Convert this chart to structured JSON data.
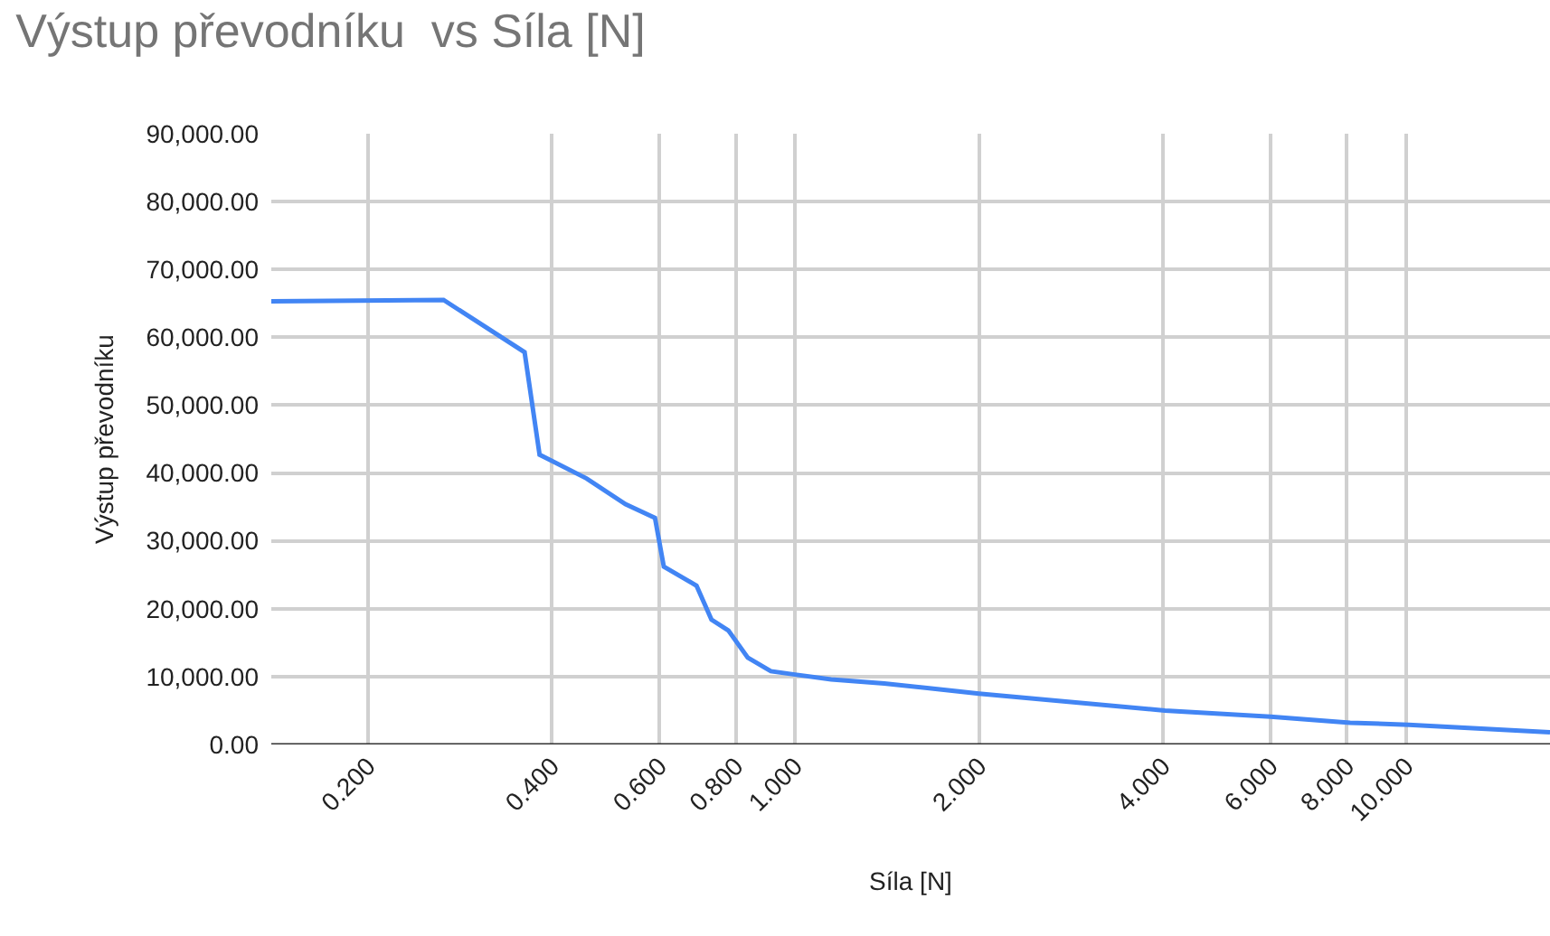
{
  "chart_data": {
    "type": "line",
    "title": "Výstup převodníku  vs Síla [N]",
    "xlabel": "Síla [N]",
    "ylabel": "Výstup převodníku",
    "x": [
      0.139,
      0.266,
      0.361,
      0.382,
      0.456,
      0.528,
      0.59,
      0.61,
      0.69,
      0.73,
      0.778,
      0.837,
      0.913,
      1.0,
      1.146,
      1.4,
      2.0,
      4.03,
      6.0,
      8.1,
      10.1,
      17.2
    ],
    "series": [
      {
        "color": "#4285f4",
        "values": [
          65300,
          65500,
          57800,
          42700,
          39200,
          35400,
          33400,
          26200,
          23400,
          18400,
          16800,
          12800,
          10800,
          10300,
          9600,
          9000,
          7500,
          5000,
          4100,
          3200,
          2900,
          1800
        ]
      }
    ],
    "log": "x",
    "xlim": [
      0.139,
      17.2
    ],
    "xticks": [
      {
        "value": 0.2,
        "label": "0.200"
      },
      {
        "value": 0.4,
        "label": "0.400"
      },
      {
        "value": 0.6,
        "label": "0.600"
      },
      {
        "value": 0.8,
        "label": "0.800"
      },
      {
        "value": 1,
        "label": "1.000"
      },
      {
        "value": 2,
        "label": "2.000"
      },
      {
        "value": 4,
        "label": "4.000"
      },
      {
        "value": 6,
        "label": "6.000"
      },
      {
        "value": 8,
        "label": "8.000"
      },
      {
        "value": 10,
        "label": "10.000"
      }
    ],
    "ylim": [
      0,
      90000
    ],
    "yticks": [
      {
        "value": 0,
        "label": "0.00"
      },
      {
        "value": 10000,
        "label": "10,000.00"
      },
      {
        "value": 20000,
        "label": "20,000.00"
      },
      {
        "value": 30000,
        "label": "30,000.00"
      },
      {
        "value": 40000,
        "label": "40,000.00"
      },
      {
        "value": 50000,
        "label": "50,000.00"
      },
      {
        "value": 60000,
        "label": "60,000.00"
      },
      {
        "value": 70000,
        "label": "70,000.00"
      },
      {
        "value": 80000,
        "label": "80,000.00"
      },
      {
        "value": 90000,
        "label": "90,000.00"
      }
    ],
    "grid": true,
    "line_style": "solid"
  }
}
